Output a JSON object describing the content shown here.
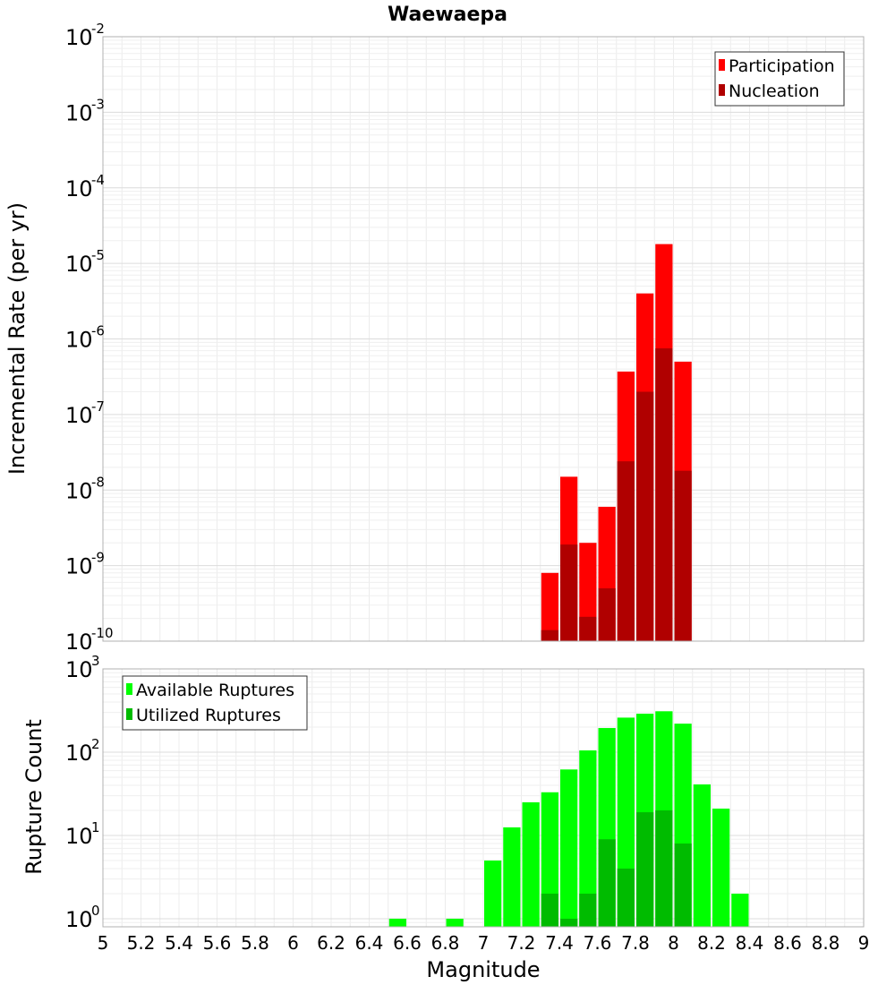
{
  "chart_data": [
    {
      "type": "bar",
      "title": "Waewaepa",
      "xlabel": "",
      "ylabel": "Incremental Rate (per yr)",
      "yscale": "log",
      "xlim": [
        5,
        9
      ],
      "ylim": [
        1e-10,
        0.01
      ],
      "grid": true,
      "legend_position": "top-right",
      "y_ticks": [
        {
          "base": "10",
          "exp": "-10"
        },
        {
          "base": "10",
          "exp": "-9"
        },
        {
          "base": "10",
          "exp": "-8"
        },
        {
          "base": "10",
          "exp": "-7"
        },
        {
          "base": "10",
          "exp": "-6"
        },
        {
          "base": "10",
          "exp": "-5"
        },
        {
          "base": "10",
          "exp": "-4"
        },
        {
          "base": "10",
          "exp": "-3"
        },
        {
          "base": "10",
          "exp": "-2"
        }
      ],
      "x": [
        7.35,
        7.45,
        7.55,
        7.65,
        7.75,
        7.85,
        7.95,
        8.05
      ],
      "series": [
        {
          "name": "Participation",
          "color": "#ff0000",
          "values": [
            8e-10,
            1.5e-08,
            2e-09,
            6e-09,
            3.7e-07,
            4e-06,
            1.8e-05,
            5e-07
          ]
        },
        {
          "name": "Nucleation",
          "color": "#b00000",
          "values": [
            1.4e-10,
            1.9e-09,
            2.1e-10,
            5e-10,
            2.4e-08,
            2e-07,
            7.5e-07,
            1.8e-08
          ]
        }
      ]
    },
    {
      "type": "bar",
      "title": "",
      "xlabel": "Magnitude",
      "ylabel": "Rupture Count",
      "yscale": "log",
      "xlim": [
        5,
        9
      ],
      "ylim": [
        0.8,
        1000
      ],
      "grid": true,
      "legend_position": "top-left",
      "x_ticks": [
        "5",
        "5.2",
        "5.4",
        "5.6",
        "5.8",
        "6",
        "6.2",
        "6.4",
        "6.6",
        "6.8",
        "7",
        "7.2",
        "7.4",
        "7.6",
        "7.8",
        "8",
        "8.2",
        "8.4",
        "8.6",
        "8.8",
        "9"
      ],
      "y_ticks": [
        {
          "base": "10",
          "exp": "0"
        },
        {
          "base": "10",
          "exp": "1"
        },
        {
          "base": "10",
          "exp": "2"
        },
        {
          "base": "10",
          "exp": "3"
        }
      ],
      "x": [
        6.55,
        6.85,
        7.05,
        7.15,
        7.25,
        7.35,
        7.45,
        7.55,
        7.65,
        7.75,
        7.85,
        7.95,
        8.05,
        8.15,
        8.25,
        8.35
      ],
      "series": [
        {
          "name": "Available Ruptures",
          "color": "#00ff00",
          "values": [
            1,
            1,
            5,
            12.5,
            25,
            33,
            62,
            105,
            195,
            260,
            290,
            310,
            220,
            41,
            21,
            2
          ]
        },
        {
          "name": "Utilized Ruptures",
          "color": "#00bb00",
          "values": [
            0,
            0,
            0,
            0,
            0,
            2,
            1,
            2,
            9,
            4,
            19,
            20,
            8,
            0,
            0,
            0
          ]
        }
      ]
    }
  ]
}
